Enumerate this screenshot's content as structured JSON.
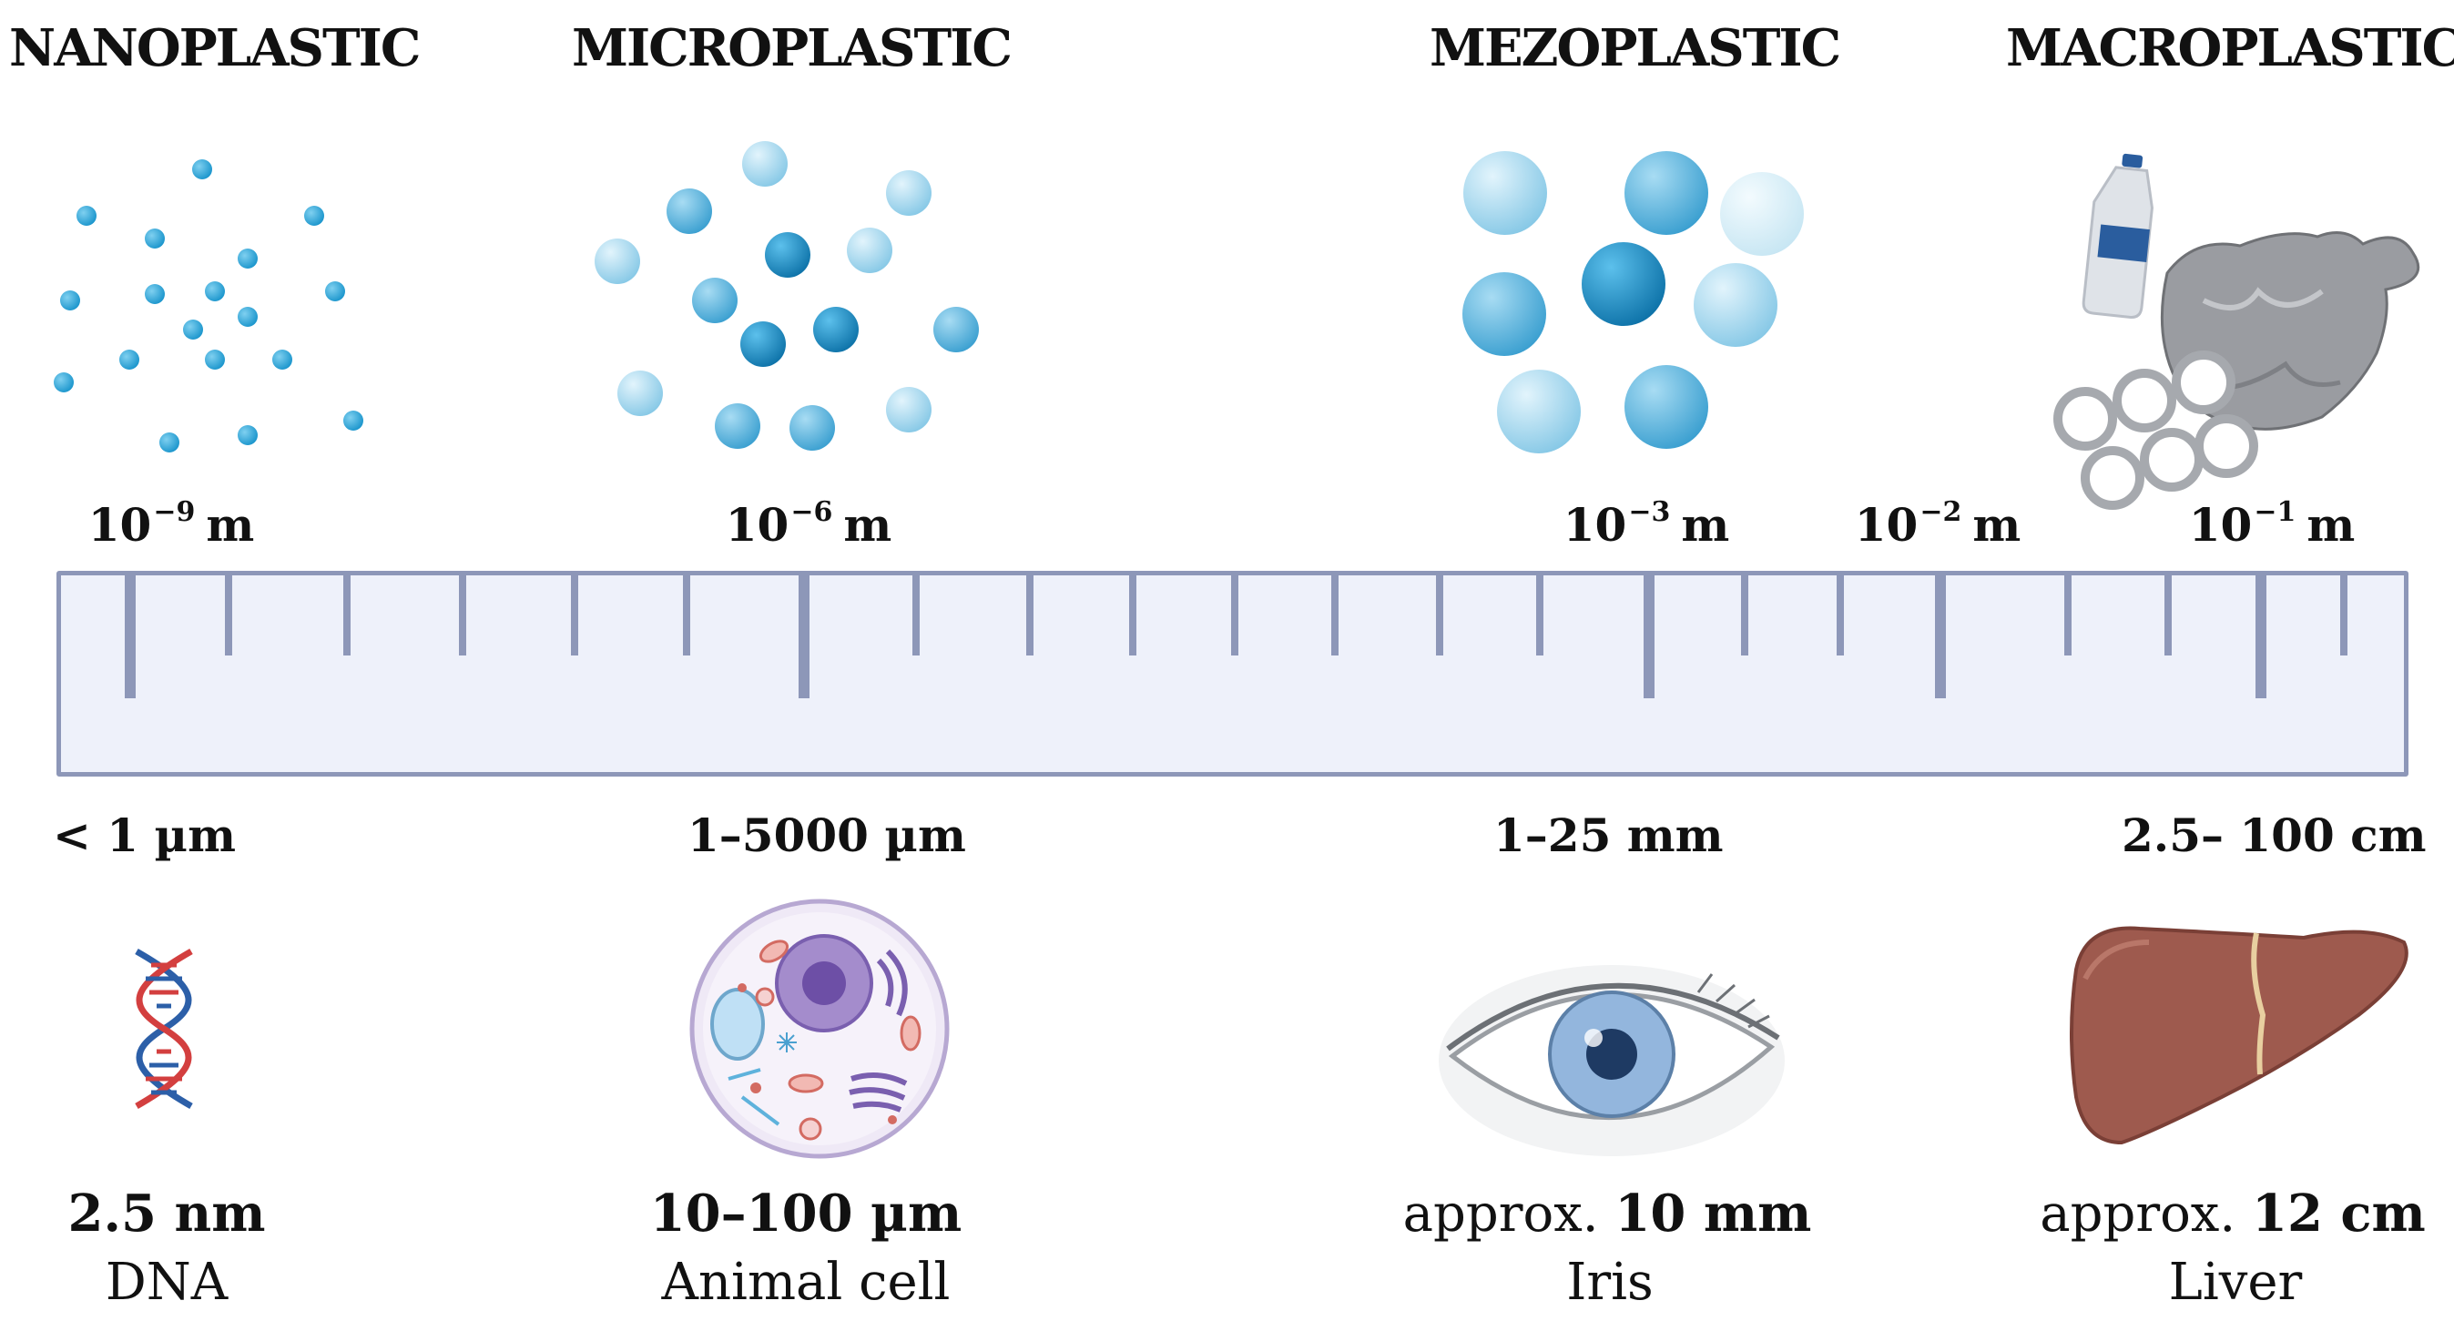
{
  "categories": [
    {
      "key": "nano",
      "label": "NANOPLASTIC"
    },
    {
      "key": "micro",
      "label": "MICROPLASTIC"
    },
    {
      "key": "mezo",
      "label": "MEZOPLASTIC"
    },
    {
      "key": "macro",
      "label": "MACROPLASTIC"
    }
  ],
  "scale_labels": [
    {
      "base": "10",
      "exponent": "−9",
      "unit": "m"
    },
    {
      "base": "10",
      "exponent": "−6",
      "unit": "m"
    },
    {
      "base": "10",
      "exponent": "−3",
      "unit": "m"
    },
    {
      "base": "10",
      "exponent": "−2",
      "unit": "m"
    },
    {
      "base": "10",
      "exponent": "−1",
      "unit": "m"
    }
  ],
  "ranges": [
    "< 1 µm",
    "1–5000 µm",
    "1–25 mm",
    "2.5– 100 cm"
  ],
  "examples": [
    {
      "prefix": "",
      "value": "2.5 nm",
      "name": "DNA",
      "icon": "dna-icon"
    },
    {
      "prefix": "",
      "value": "10–100 µm",
      "name": "Animal cell",
      "icon": "animal-cell-icon"
    },
    {
      "prefix": "approx. ",
      "value": "10 mm",
      "name": "Iris",
      "icon": "eye-icon"
    },
    {
      "prefix": "approx. ",
      "value": "12 cm",
      "name": "Liver",
      "icon": "liver-icon"
    }
  ],
  "colors": {
    "ruler_border": "#8d97b8",
    "ruler_fill": "#eef1fa",
    "particle_light": "#8ccbe6",
    "particle_mid": "#3ea7d6",
    "particle_dark": "#1a86bd",
    "liver": "#9e5a4e",
    "dna_red": "#d33f3f",
    "dna_blue": "#2c5fa8"
  }
}
